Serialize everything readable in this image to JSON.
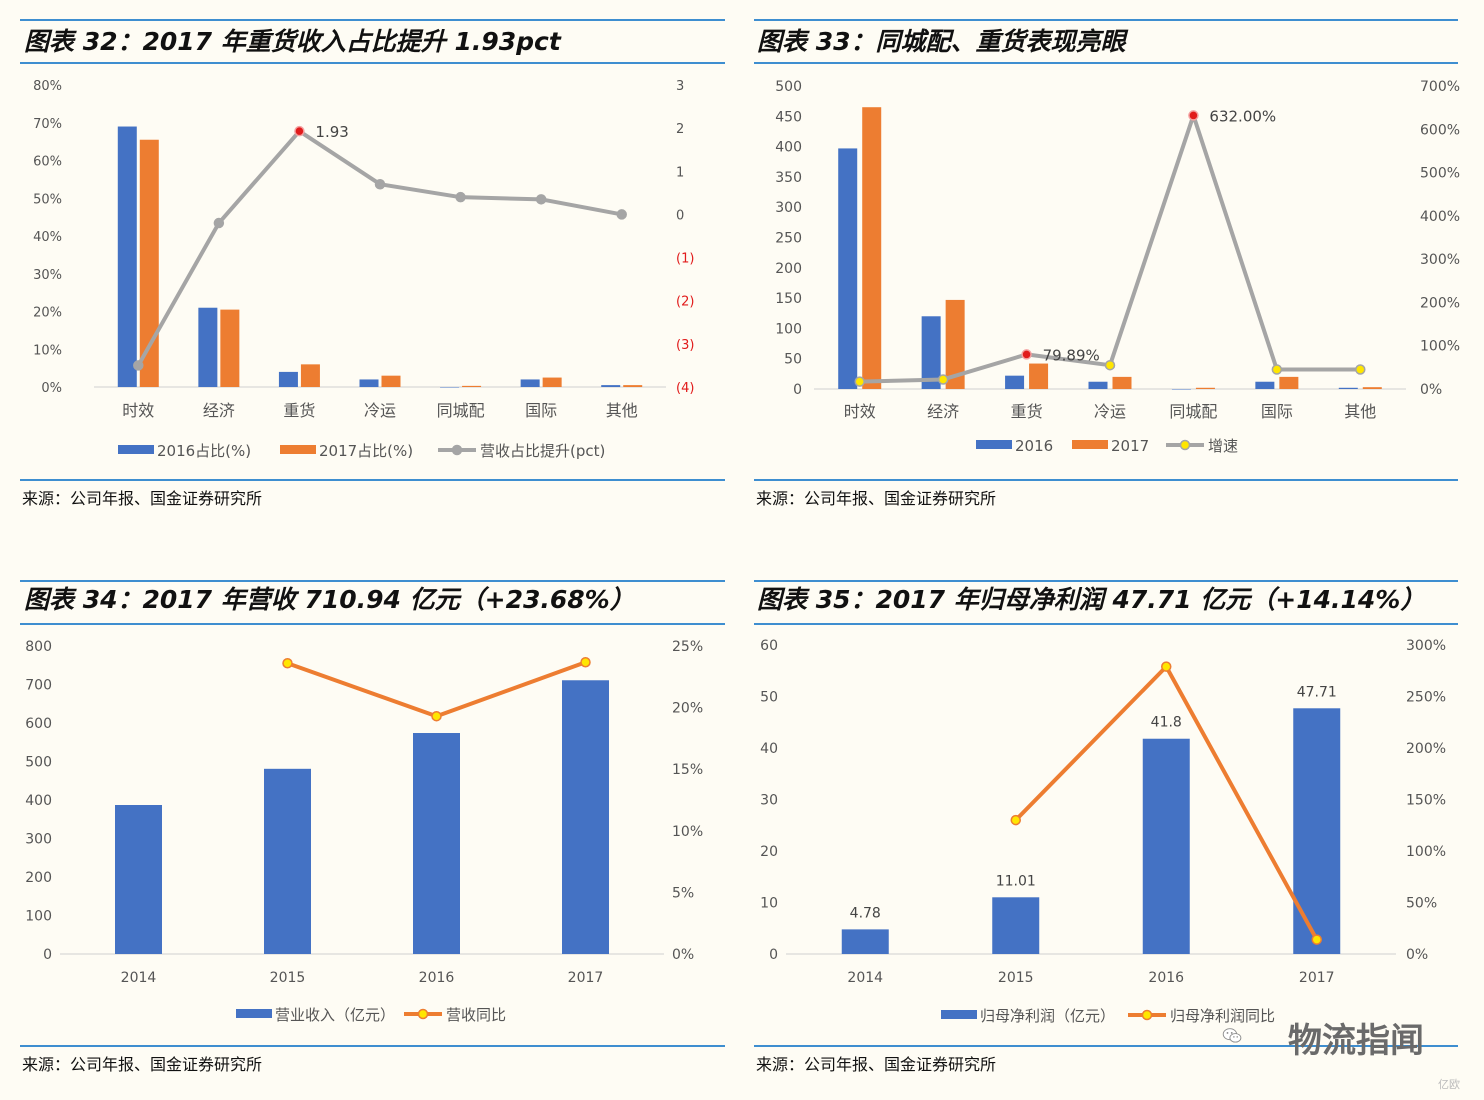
{
  "colors": {
    "blue": "#4472c4",
    "orange": "#ed7d31",
    "gray": "#a5a5a5",
    "red": "#e11b1b",
    "yellow": "#ffe600",
    "accent": "#3e8ed0"
  },
  "panels": [
    {
      "title": "图表 32：2017 年重货收入占比提升 1.93pct",
      "source": "来源：公司年报、国金证券研究所",
      "chart_data": {
        "type": "bar+line",
        "categories": [
          "时效",
          "经济",
          "重货",
          "冷运",
          "同城配",
          "国际",
          "其他"
        ],
        "series": [
          {
            "name": "2016占比(%)",
            "kind": "bar",
            "axis": "left",
            "values": [
              69,
              21,
              4,
              2,
              0,
              2,
              0.5
            ]
          },
          {
            "name": "2017占比(%)",
            "kind": "bar",
            "axis": "left",
            "values": [
              65.5,
              20.5,
              6,
              3,
              0.3,
              2.5,
              0.5
            ]
          },
          {
            "name": "营收占比提升(pct)",
            "kind": "line",
            "axis": "right",
            "values": [
              -3.5,
              -0.2,
              1.93,
              0.7,
              0.4,
              0.35,
              0
            ]
          }
        ],
        "left_ticks": [
          "0%",
          "10%",
          "20%",
          "30%",
          "40%",
          "50%",
          "60%",
          "70%",
          "80%"
        ],
        "left_ylim": [
          0,
          80
        ],
        "right_ticks": [
          "(4)",
          "(3)",
          "(2)",
          "(1)",
          "0",
          "1",
          "2",
          "3"
        ],
        "right_ylim": [
          -4,
          3
        ],
        "annotations": [
          {
            "label": "1.93",
            "series": 2,
            "index": 2
          }
        ],
        "legend": [
          "2016占比(%)",
          "2017占比(%)",
          "营收占比提升(pct)"
        ]
      }
    },
    {
      "title": "图表 33：同城配、重货表现亮眼",
      "source": "来源：公司年报、国金证券研究所",
      "chart_data": {
        "type": "bar+line",
        "categories": [
          "时效",
          "经济",
          "重货",
          "冷运",
          "同城配",
          "国际",
          "其他"
        ],
        "series": [
          {
            "name": "2016",
            "kind": "bar",
            "axis": "left",
            "values": [
              397,
              120,
              22,
              12,
              0,
              12,
              2
            ]
          },
          {
            "name": "2017",
            "kind": "bar",
            "axis": "left",
            "values": [
              465,
              147,
              42,
              20,
              2,
              20,
              3
            ]
          },
          {
            "name": "增速",
            "kind": "line",
            "axis": "right",
            "values": [
              17,
              22,
              79.89,
              55,
              632,
              45,
              45
            ]
          }
        ],
        "left_ticks": [
          "0",
          "50",
          "100",
          "150",
          "200",
          "250",
          "300",
          "350",
          "400",
          "450",
          "500"
        ],
        "left_ylim": [
          0,
          500
        ],
        "right_ticks": [
          "0%",
          "100%",
          "200%",
          "300%",
          "400%",
          "500%",
          "600%",
          "700%"
        ],
        "right_ylim": [
          0,
          700
        ],
        "annotations": [
          {
            "label": "79.89%",
            "series": 2,
            "index": 2
          },
          {
            "label": "632.00%",
            "series": 2,
            "index": 4
          }
        ],
        "legend": [
          "2016",
          "2017",
          "增速"
        ]
      }
    },
    {
      "title": "图表 34：2017 年营收 710.94 亿元（+23.68%）",
      "source": "来源：公司年报、国金证券研究所",
      "chart_data": {
        "type": "bar+line",
        "categories": [
          "2014",
          "2015",
          "2016",
          "2017"
        ],
        "series": [
          {
            "name": "营业收入（亿元）",
            "kind": "bar",
            "axis": "left",
            "values": [
              387,
              481,
              574,
              711
            ]
          },
          {
            "name": "营收同比",
            "kind": "line",
            "axis": "right",
            "values": [
              null,
              23.6,
              19.3,
              23.68
            ]
          }
        ],
        "left_ticks": [
          "0",
          "100",
          "200",
          "300",
          "400",
          "500",
          "600",
          "700",
          "800"
        ],
        "left_ylim": [
          0,
          800
        ],
        "right_ticks": [
          "0%",
          "5%",
          "10%",
          "15%",
          "20%",
          "25%"
        ],
        "right_ylim": [
          0,
          25
        ],
        "annotations": [],
        "legend": [
          "营业收入（亿元）",
          "营收同比"
        ]
      }
    },
    {
      "title": "图表 35：2017 年归母净利润 47.71 亿元（+14.14%）",
      "source": "来源：公司年报、国金证券研究所",
      "chart_data": {
        "type": "bar+line",
        "categories": [
          "2014",
          "2015",
          "2016",
          "2017"
        ],
        "series": [
          {
            "name": "归母净利润（亿元）",
            "kind": "bar",
            "axis": "left",
            "values": [
              4.78,
              11.01,
              41.8,
              47.71
            ]
          },
          {
            "name": "归母净利润同比",
            "kind": "line",
            "axis": "right",
            "values": [
              null,
              130,
              279,
              14
            ]
          }
        ],
        "left_ticks": [
          "0",
          "10",
          "20",
          "30",
          "40",
          "50",
          "60"
        ],
        "left_ylim": [
          0,
          60
        ],
        "right_ticks": [
          "0%",
          "50%",
          "100%",
          "150%",
          "200%",
          "250%",
          "300%"
        ],
        "right_ylim": [
          0,
          300
        ],
        "bar_labels": [
          "4.78",
          "11.01",
          "41.8",
          "47.71"
        ],
        "annotations": [],
        "legend": [
          "归母净利润（亿元）",
          "归母净利润同比"
        ]
      }
    }
  ],
  "watermark": {
    "text": "物流指闻",
    "small": "亿欧"
  }
}
